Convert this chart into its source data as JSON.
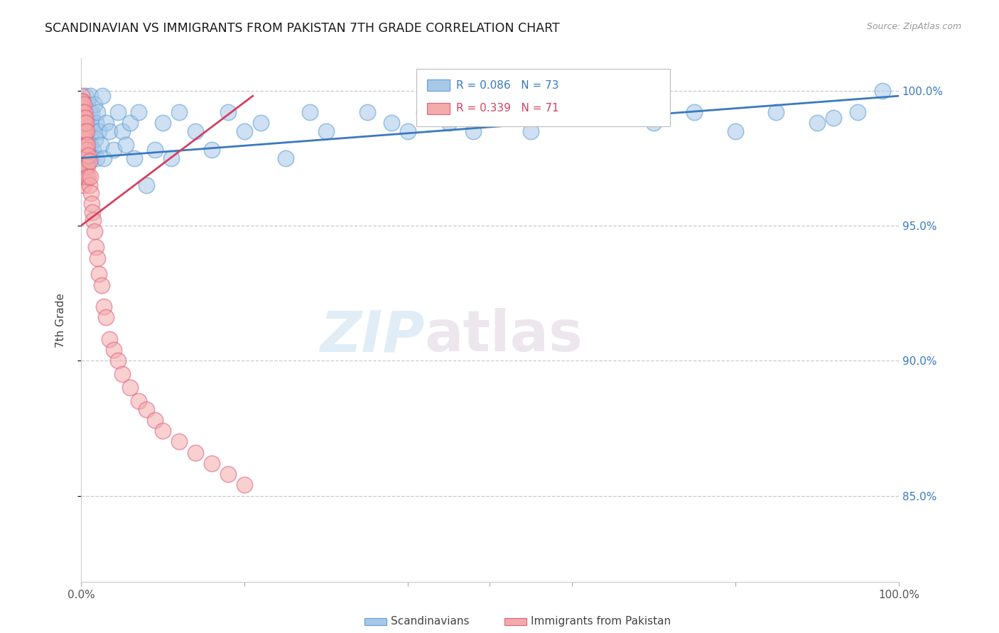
{
  "title": "SCANDINAVIAN VS IMMIGRANTS FROM PAKISTAN 7TH GRADE CORRELATION CHART",
  "source": "Source: ZipAtlas.com",
  "ylabel": "7th Grade",
  "ytick_labels": [
    "85.0%",
    "90.0%",
    "95.0%",
    "100.0%"
  ],
  "ytick_values": [
    0.85,
    0.9,
    0.95,
    1.0
  ],
  "legend1_r": "R = 0.086",
  "legend1_n": "N = 73",
  "legend2_r": "R = 0.339",
  "legend2_n": "N = 71",
  "legend_label1": "Scandinavians",
  "legend_label2": "Immigrants from Pakistan",
  "blue_color": "#a8c8e8",
  "blue_edge_color": "#5a9fd4",
  "pink_color": "#f4aaaa",
  "pink_edge_color": "#e06080",
  "blue_line_color": "#3a7abf",
  "pink_line_color": "#d44060",
  "watermark_zip": "ZIP",
  "watermark_atlas": "atlas",
  "ylim_low": 0.818,
  "ylim_high": 1.012,
  "xlim_low": 0.0,
  "xlim_high": 1.0,
  "scatter_blue_x": [
    0.001,
    0.002,
    0.003,
    0.003,
    0.004,
    0.005,
    0.005,
    0.006,
    0.006,
    0.007,
    0.007,
    0.008,
    0.008,
    0.009,
    0.009,
    0.01,
    0.01,
    0.011,
    0.011,
    0.012,
    0.012,
    0.013,
    0.014,
    0.015,
    0.016,
    0.017,
    0.018,
    0.019,
    0.02,
    0.022,
    0.024,
    0.026,
    0.028,
    0.03,
    0.035,
    0.04,
    0.045,
    0.05,
    0.055,
    0.06,
    0.065,
    0.07,
    0.08,
    0.09,
    0.1,
    0.11,
    0.12,
    0.14,
    0.16,
    0.18,
    0.2,
    0.22,
    0.25,
    0.28,
    0.3,
    0.35,
    0.38,
    0.4,
    0.42,
    0.45,
    0.48,
    0.5,
    0.55,
    0.6,
    0.65,
    0.7,
    0.75,
    0.8,
    0.85,
    0.9,
    0.92,
    0.95,
    0.98
  ],
  "scatter_blue_y": [
    0.992,
    0.988,
    0.985,
    0.995,
    0.98,
    0.998,
    0.975,
    0.992,
    0.985,
    0.99,
    0.978,
    0.995,
    0.982,
    0.988,
    0.975,
    0.992,
    0.985,
    0.98,
    0.998,
    0.975,
    0.988,
    0.992,
    0.985,
    0.978,
    0.995,
    0.982,
    0.988,
    0.975,
    0.992,
    0.985,
    0.98,
    0.998,
    0.975,
    0.988,
    0.985,
    0.978,
    0.992,
    0.985,
    0.98,
    0.988,
    0.975,
    0.992,
    0.965,
    0.978,
    0.988,
    0.975,
    0.992,
    0.985,
    0.978,
    0.992,
    0.985,
    0.988,
    0.975,
    0.992,
    0.985,
    0.992,
    0.988,
    0.985,
    0.992,
    0.988,
    0.985,
    0.99,
    0.985,
    0.992,
    0.995,
    0.988,
    0.992,
    0.985,
    0.992,
    0.988,
    0.99,
    0.992,
    1.0
  ],
  "scatter_pink_x": [
    0.001,
    0.001,
    0.001,
    0.001,
    0.001,
    0.001,
    0.001,
    0.001,
    0.001,
    0.001,
    0.001,
    0.002,
    0.002,
    0.002,
    0.002,
    0.002,
    0.002,
    0.002,
    0.003,
    0.003,
    0.003,
    0.003,
    0.003,
    0.003,
    0.004,
    0.004,
    0.004,
    0.004,
    0.004,
    0.005,
    0.005,
    0.005,
    0.005,
    0.006,
    0.006,
    0.006,
    0.007,
    0.007,
    0.007,
    0.008,
    0.008,
    0.009,
    0.009,
    0.01,
    0.01,
    0.011,
    0.012,
    0.013,
    0.014,
    0.015,
    0.016,
    0.018,
    0.02,
    0.022,
    0.025,
    0.028,
    0.03,
    0.035,
    0.04,
    0.045,
    0.05,
    0.06,
    0.07,
    0.08,
    0.09,
    0.1,
    0.12,
    0.14,
    0.16,
    0.18,
    0.2
  ],
  "scatter_pink_y": [
    0.998,
    0.996,
    0.994,
    0.992,
    0.99,
    0.988,
    0.985,
    0.982,
    0.978,
    0.974,
    0.97,
    0.996,
    0.992,
    0.988,
    0.984,
    0.98,
    0.975,
    0.968,
    0.995,
    0.99,
    0.985,
    0.98,
    0.975,
    0.965,
    0.992,
    0.988,
    0.982,
    0.975,
    0.968,
    0.99,
    0.985,
    0.978,
    0.97,
    0.988,
    0.98,
    0.972,
    0.985,
    0.978,
    0.968,
    0.98,
    0.972,
    0.976,
    0.968,
    0.974,
    0.965,
    0.968,
    0.962,
    0.958,
    0.955,
    0.952,
    0.948,
    0.942,
    0.938,
    0.932,
    0.928,
    0.92,
    0.916,
    0.908,
    0.904,
    0.9,
    0.895,
    0.89,
    0.885,
    0.882,
    0.878,
    0.874,
    0.87,
    0.866,
    0.862,
    0.858,
    0.854
  ],
  "blue_line_x": [
    0.0,
    1.0
  ],
  "blue_line_y": [
    0.975,
    0.998
  ],
  "pink_line_x": [
    0.0,
    0.21
  ],
  "pink_line_y": [
    0.95,
    0.998
  ]
}
